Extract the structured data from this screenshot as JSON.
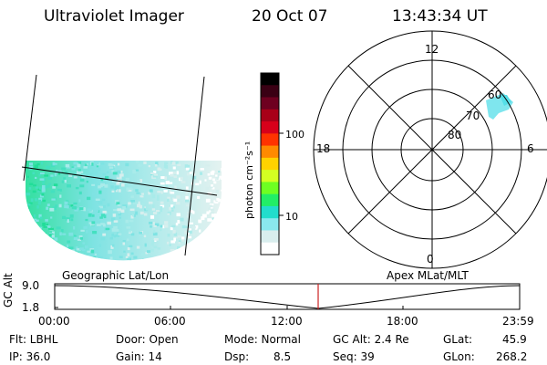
{
  "header": {
    "title": "Ultraviolet Imager",
    "date": "20 Oct 07",
    "time": "13:43:34 UT"
  },
  "colorbar": {
    "units": "photon cm⁻²s⁻¹",
    "ticks": [
      "100",
      "10"
    ],
    "colors": [
      "#000000",
      "#3a0014",
      "#6e0020",
      "#a80018",
      "#d8001a",
      "#ff3300",
      "#ff8a00",
      "#ffd200",
      "#d4ff22",
      "#6eff22",
      "#22ee66",
      "#22ddcc",
      "#8ae8ee",
      "#d9eeee",
      "#ffffff"
    ]
  },
  "polar": {
    "mlt_labels": [
      "12",
      "18",
      "6",
      "0"
    ],
    "lat_labels": [
      "60",
      "70",
      "80"
    ]
  },
  "map_caption": "Geographic Lat/Lon",
  "polar_caption": "Apex MLat/MLT",
  "altitude_plot": {
    "ylabel": "GC Alt",
    "yticks": [
      "9.0",
      "1.8"
    ],
    "xticks": [
      "00:00",
      "06:00",
      "12:00",
      "18:00",
      "23:59"
    ],
    "marker_color": "#cc2222",
    "marker_time_hours": 13.73
  },
  "footer": {
    "flt": "Flt: LBHL",
    "ip": "IP: 36.0",
    "door": "Door: Open",
    "gain": "Gain: 14",
    "mode": "Mode: Normal",
    "dsp_label": "Dsp:",
    "dsp_value": "8.5",
    "gcalt": "GC Alt: 2.4 Re",
    "seq": "Seq: 39",
    "glat_label": "GLat:",
    "glat_value": "45.9",
    "glon_label": "GLon:",
    "glon_value": "268.2"
  }
}
